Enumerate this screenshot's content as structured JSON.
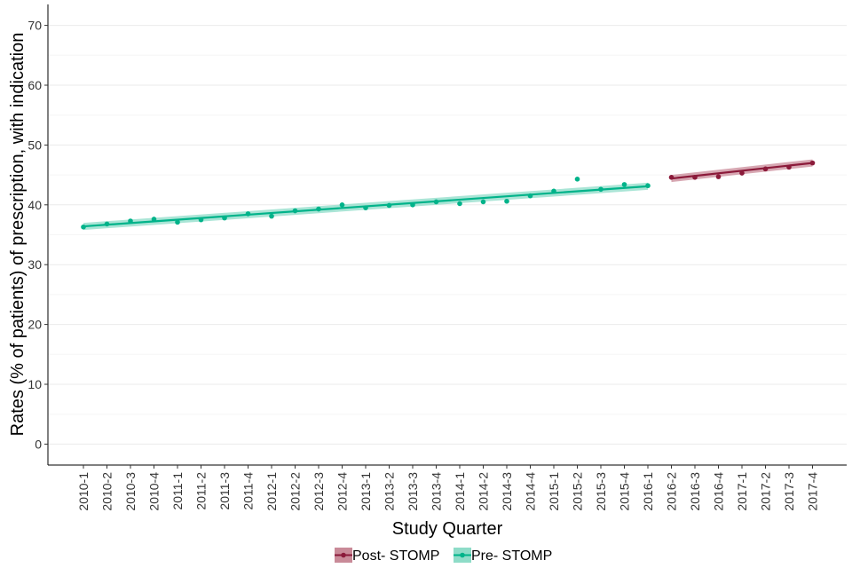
{
  "chart_data": {
    "type": "scatter",
    "title": "",
    "xlabel": "Study Quarter",
    "ylabel": "Rates (% of patients) of prescription, with indication",
    "ylim": [
      -3.5,
      73.5
    ],
    "yticks": [
      0,
      10,
      20,
      30,
      40,
      50,
      60,
      70
    ],
    "grid": "horizontal",
    "legend_position": "bottom",
    "categories": [
      "2010-1",
      "2010-2",
      "2010-3",
      "2010-4",
      "2011-1",
      "2011-2",
      "2011-3",
      "2011-4",
      "2012-1",
      "2012-2",
      "2012-3",
      "2012-4",
      "2013-1",
      "2013-2",
      "2013-3",
      "2013-4",
      "2014-1",
      "2014-2",
      "2014-3",
      "2014-4",
      "2015-1",
      "2015-2",
      "2015-3",
      "2015-4",
      "2016-1",
      "2016-2",
      "2016-3",
      "2016-4",
      "2017-1",
      "2017-2",
      "2017-3",
      "2017-4"
    ],
    "series": [
      {
        "name": "Post- STOMP",
        "color": "#8B1A3A",
        "band_color": "#C98A98",
        "x": [
          "2016-2",
          "2016-3",
          "2016-4",
          "2017-1",
          "2017-2",
          "2017-3",
          "2017-4"
        ],
        "values": [
          44.6,
          44.6,
          44.7,
          45.3,
          46.0,
          46.3,
          47.0
        ],
        "fit": [
          44.4,
          47.0
        ]
      },
      {
        "name": "Pre- STOMP",
        "color": "#00B38A",
        "band_color": "#8EDCC8",
        "x": [
          "2010-1",
          "2010-2",
          "2010-3",
          "2010-4",
          "2011-1",
          "2011-2",
          "2011-3",
          "2011-4",
          "2012-1",
          "2012-2",
          "2012-3",
          "2012-4",
          "2013-1",
          "2013-2",
          "2013-3",
          "2013-4",
          "2014-1",
          "2014-2",
          "2014-3",
          "2014-4",
          "2015-1",
          "2015-2",
          "2015-3",
          "2015-4",
          "2016-1"
        ],
        "values": [
          36.3,
          36.8,
          37.3,
          37.6,
          37.1,
          37.5,
          37.8,
          38.5,
          38.1,
          39.0,
          39.3,
          40.0,
          39.5,
          39.9,
          40.0,
          40.5,
          40.2,
          40.5,
          40.6,
          41.5,
          42.3,
          44.3,
          42.6,
          43.4,
          43.2
        ],
        "fit": [
          36.4,
          43.1
        ]
      }
    ]
  }
}
